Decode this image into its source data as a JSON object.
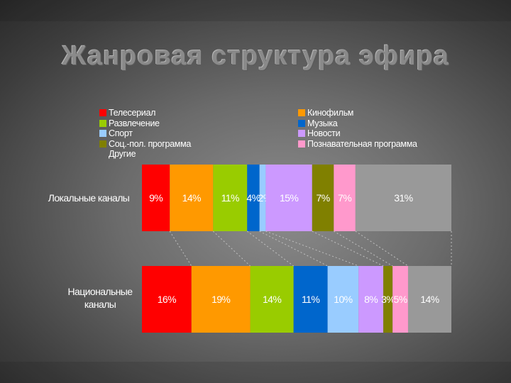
{
  "title": "Жанровая структура эфира",
  "chart_data": {
    "type": "bar",
    "stacked": true,
    "orientation": "horizontal",
    "percent": true,
    "categories": [
      "Локальные каналы",
      "Национальные каналы"
    ],
    "category_lines": [
      [
        "Локальные каналы"
      ],
      [
        "Национальные",
        "каналы"
      ]
    ],
    "series": [
      {
        "name": "Телесериал",
        "color": "#ff0000",
        "values": [
          9,
          16
        ],
        "labels": [
          "9%",
          "16%"
        ]
      },
      {
        "name": "Кинофильм",
        "color": "#ff9900",
        "values": [
          14,
          19
        ],
        "labels": [
          "14%",
          "19%"
        ]
      },
      {
        "name": "Развлечение",
        "color": "#99cc00",
        "values": [
          11,
          14
        ],
        "labels": [
          "11%",
          "14%"
        ]
      },
      {
        "name": "Музыка",
        "color": "#0066cc",
        "values": [
          4,
          11
        ],
        "labels": [
          "4%",
          "11%"
        ]
      },
      {
        "name": "Спорт",
        "color": "#99ccff",
        "values": [
          2,
          10
        ],
        "labels": [
          "2%",
          "10%"
        ]
      },
      {
        "name": "Новости",
        "color": "#cc99ff",
        "values": [
          15,
          8
        ],
        "labels": [
          "15%",
          "8%"
        ]
      },
      {
        "name": "Соц.-пол. программа",
        "color": "#808000",
        "values": [
          7,
          3
        ],
        "labels": [
          "7%",
          "3%"
        ]
      },
      {
        "name": "Познавательная программа",
        "color": "#ff99cc",
        "values": [
          7,
          5
        ],
        "labels": [
          "7%",
          "5%"
        ]
      },
      {
        "name": "Другие",
        "color": "#999999",
        "values": [
          31,
          14
        ],
        "labels": [
          "31%",
          "14%"
        ]
      }
    ],
    "legend": {
      "position": "top",
      "columns": [
        [
          "Телесериал",
          "Развлечение",
          "Спорт",
          "Соц.-пол. программа",
          "Другие"
        ],
        [
          "Кинофильм",
          "Музыка",
          "Новости",
          "Познавательная программа"
        ]
      ]
    },
    "connector_lines": true,
    "grid": false
  }
}
